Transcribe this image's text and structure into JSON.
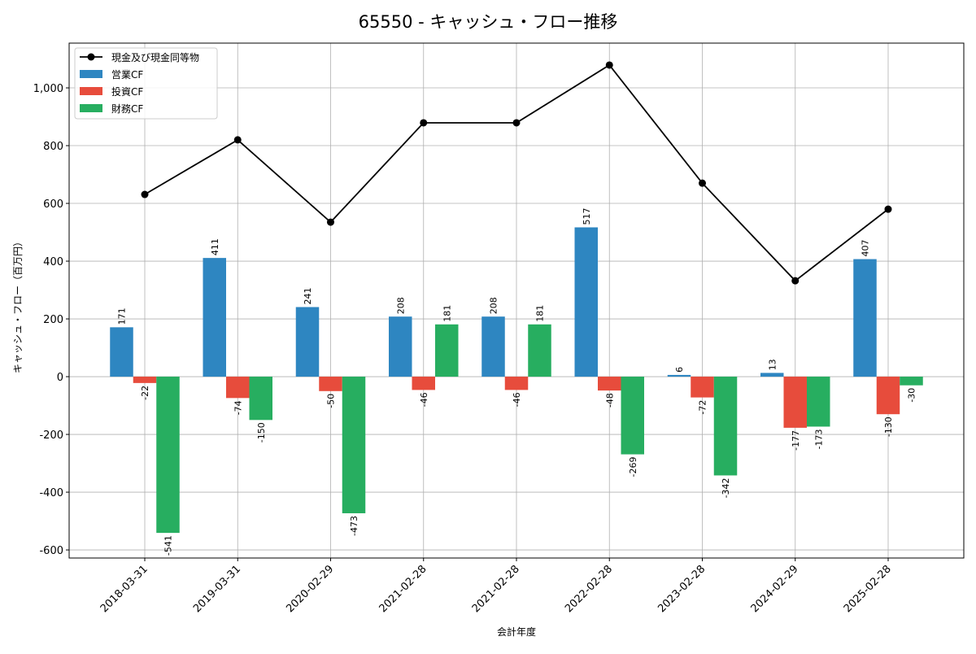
{
  "chart_data": {
    "type": "bar",
    "title": "65550 - キャッシュ・フロー推移",
    "xlabel": "会計年度",
    "ylabel": "キャッシュ・フロー（百万円）",
    "ylim": [
      -628,
      1155
    ],
    "yticks": [
      -600,
      -400,
      -200,
      0,
      200,
      400,
      600,
      800,
      1000
    ],
    "ytick_labels": [
      "-600",
      "-400",
      "-200",
      "0",
      "200",
      "400",
      "600",
      "800",
      "1,000"
    ],
    "grid": true,
    "legend_position": "top-left",
    "categories": [
      "2018-03-31",
      "2019-03-31",
      "2020-02-29",
      "2021-02-28",
      "2021-02-28",
      "2022-02-28",
      "2023-02-28",
      "2024-02-29",
      "2025-02-28"
    ],
    "series": [
      {
        "name": "営業CF",
        "kind": "bar",
        "color": "#2e86c1",
        "values": [
          171,
          411,
          241,
          208,
          208,
          517,
          6,
          13,
          407
        ]
      },
      {
        "name": "投資CF",
        "kind": "bar",
        "color": "#e74c3c",
        "values": [
          -22,
          -74,
          -50,
          -46,
          -46,
          -48,
          -72,
          -177,
          -130
        ]
      },
      {
        "name": "財務CF",
        "kind": "bar",
        "color": "#27ae60",
        "values": [
          -541,
          -150,
          -473,
          181,
          181,
          -269,
          -342,
          -173,
          -30
        ]
      }
    ],
    "line": {
      "name": "現金及び現金同等物",
      "color": "#000000",
      "values": [
        631,
        820,
        535,
        879,
        879,
        1079,
        670,
        332,
        580
      ]
    }
  }
}
